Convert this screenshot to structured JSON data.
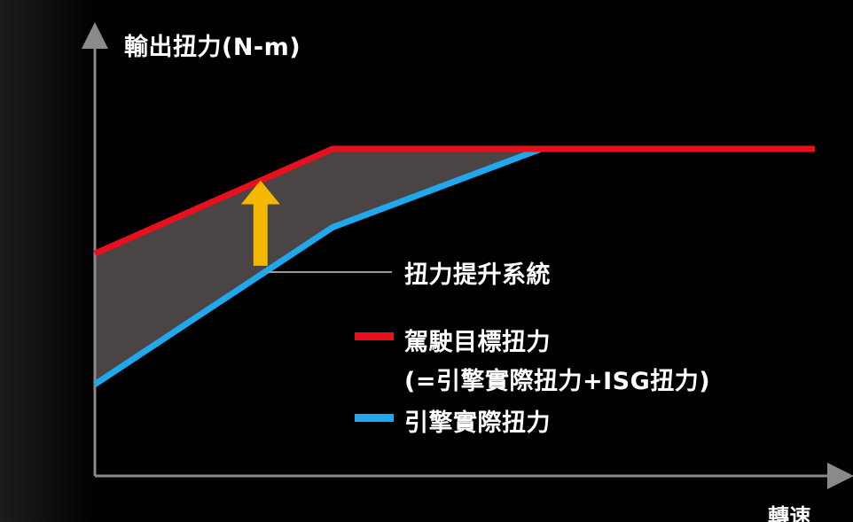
{
  "colors": {
    "background": "#000000",
    "axis": "#8a8a8a",
    "target": "#e8101c",
    "engine": "#1fa8ec",
    "fill": "#4a4544",
    "arrow": "#f5b800",
    "leader": "#9a9a9a",
    "text": "#ffffff"
  },
  "chart_data": {
    "type": "line",
    "title": "",
    "ylabel": "輸出扭力(N-m)",
    "xlabel": "轉速",
    "xlim": [
      0,
      100
    ],
    "ylim": [
      0,
      100
    ],
    "series": [
      {
        "name": "駕駛目標扭力",
        "subtitle": "(=引擎實際扭力+ISG扭力)",
        "color": "#e8101c",
        "points": [
          [
            0,
            51
          ],
          [
            33,
            75
          ],
          [
            100,
            75
          ]
        ]
      },
      {
        "name": "引擎實際扭力",
        "color": "#1fa8ec",
        "points": [
          [
            0,
            21
          ],
          [
            33,
            57
          ],
          [
            62,
            75
          ]
        ]
      }
    ],
    "shaded_region": {
      "between": [
        "駕駛目標扭力",
        "引擎實際扭力"
      ],
      "color": "#4a4544"
    },
    "annotations": [
      {
        "text": "扭力提升系統",
        "arrow_x": 23,
        "arrow_from": 49,
        "arrow_to": 68,
        "arrow_color": "#f5b800"
      }
    ],
    "legend": {
      "position": "right-middle",
      "entries": [
        "駕駛目標扭力",
        "引擎實際扭力"
      ]
    },
    "grid": false
  }
}
